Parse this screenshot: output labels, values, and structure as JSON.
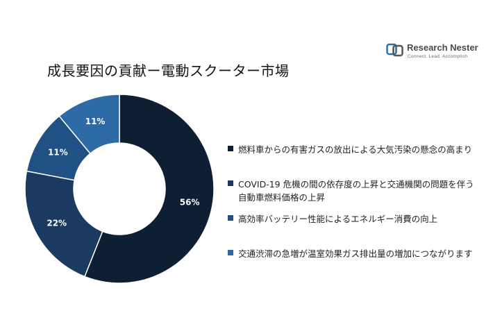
{
  "title": "成長要因の貢献ー電動スクーター市場",
  "logo": {
    "name": "Research Nester",
    "tagline": "Connect. Lead. Accomplish"
  },
  "colors": {
    "logo_blue": "#2c6fad",
    "logo_gray": "#555555"
  },
  "chart_data": {
    "type": "pie",
    "donut": true,
    "legend_position": "right",
    "categories": [
      "燃料車からの有害ガスの放出による大気汚染の懸念の高まり",
      "COVID-19 危機の間の依存度の上昇と交通機関の問題を伴う自動車燃料価格の上昇",
      "高効率バッテリー性能によるエネルギー消費の向上",
      "交通渋滞の急増が温室効果ガス排出量の増加につながります"
    ],
    "values": [
      56,
      22,
      11,
      11
    ],
    "value_labels": [
      "56%",
      "22%",
      "11%",
      "11%"
    ],
    "colors": [
      "#0e1e33",
      "#1a3a61",
      "#1f5185",
      "#2d6aa6"
    ]
  }
}
